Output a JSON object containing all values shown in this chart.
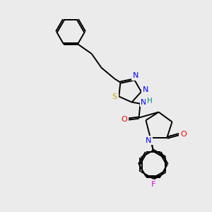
{
  "background_color": "#ebebeb",
  "bond_color": "#000000",
  "atom_colors": {
    "N": "#0000ff",
    "O": "#ff0000",
    "S": "#bbaa00",
    "F": "#ee00ee",
    "H": "#008888",
    "C": "#000000"
  },
  "figsize": [
    3.0,
    3.0
  ],
  "dpi": 100
}
